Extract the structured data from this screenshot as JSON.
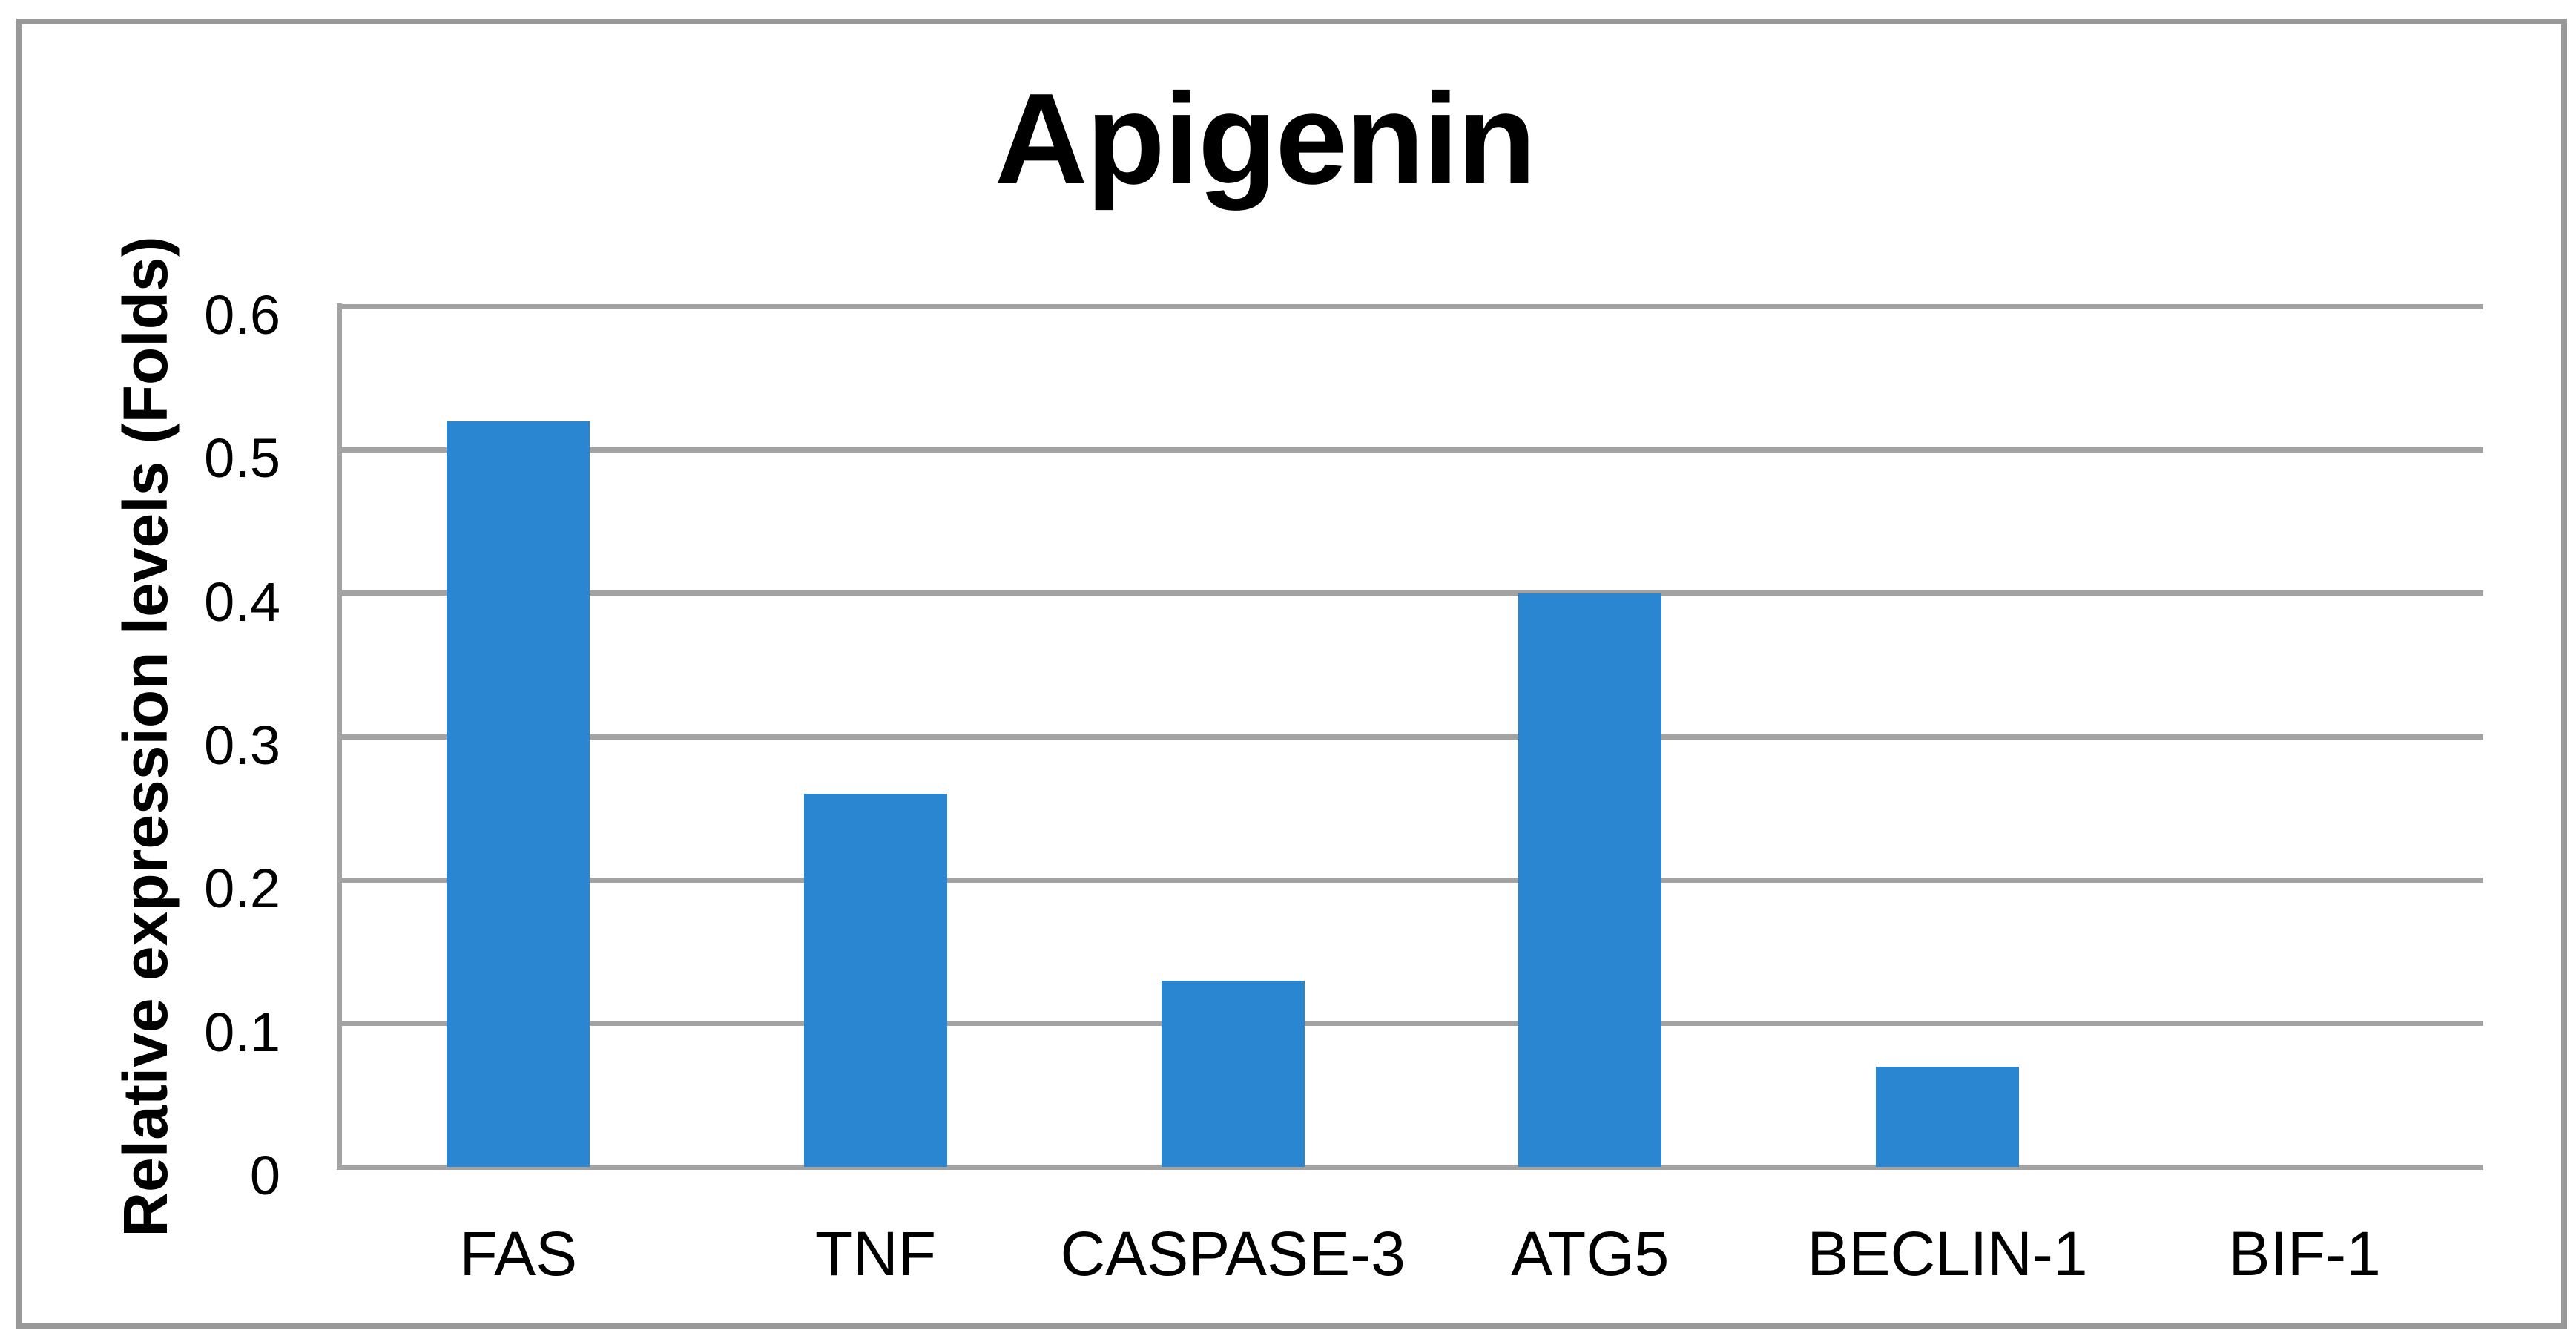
{
  "title": "Apigenin",
  "chart_data": {
    "type": "bar",
    "title": "Apigenin",
    "categories": [
      "FAS",
      "TNF",
      "CASPASE-3",
      "ATG5",
      "BECLIN-1",
      "BIF-1"
    ],
    "values": [
      0.52,
      0.26,
      0.13,
      0.4,
      0.07,
      0
    ],
    "xlabel": "",
    "ylabel": "Relative expression levels (Folds)",
    "ylim": [
      0,
      0.6
    ],
    "ytick_values": [
      0,
      0.1,
      0.2,
      0.3,
      0.4,
      0.5,
      0.6
    ],
    "ytick_labels": [
      "0",
      "0.1",
      "0.2",
      "0.3",
      "0.4",
      "0.5",
      "0.6"
    ],
    "grid": "horizontal",
    "legend_position": "none",
    "colors": {
      "bar": "#2b86d2",
      "gridline": "#a3a3a3",
      "axis_line": "#a3a3a3",
      "outer_border": "#999999",
      "text": "#000000",
      "background": "#ffffff"
    }
  }
}
